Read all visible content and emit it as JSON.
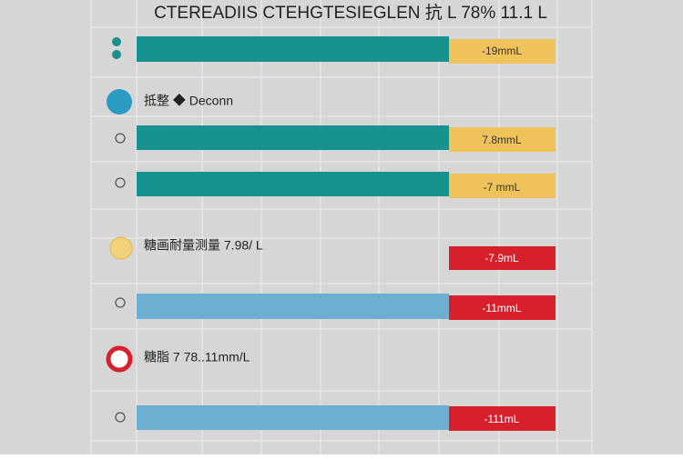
{
  "header": {
    "title": "CTEREADIIS CTEHGTESIEGLEN 抗 L 78% 11.1 L"
  },
  "sections": [
    {
      "label": "抵整 ◆ Deconn"
    },
    {
      "label": "糖画耐量测量 7.98/ L"
    },
    {
      "label": "糖脂  7  78..11mm/L"
    }
  ],
  "rows": [
    {
      "badge": "-19mmL"
    },
    {
      "badge": "7.8mmL"
    },
    {
      "badge": "-7 mmL"
    },
    {
      "badge": "-7.9mL"
    },
    {
      "badge": "-11mmL"
    },
    {
      "badge": "-111mL"
    }
  ]
}
